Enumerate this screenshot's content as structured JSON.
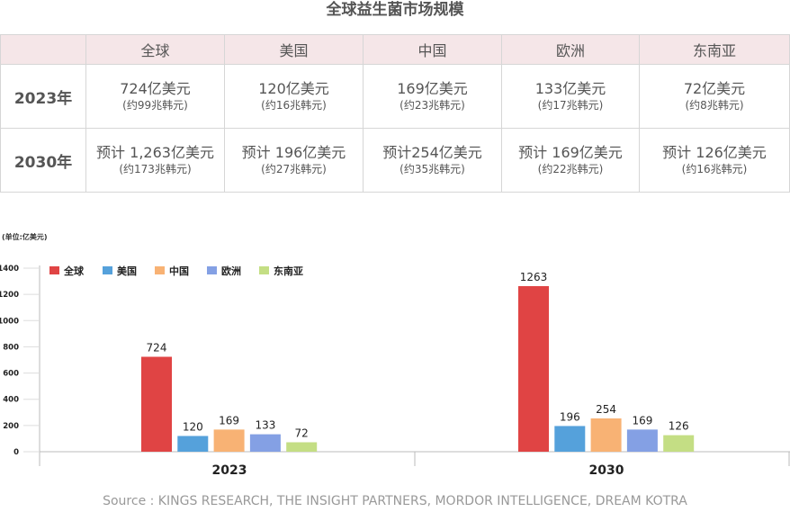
{
  "title": "全球益生菌市场规模",
  "table": {
    "headers": [
      "",
      "全球",
      "美国",
      "中国",
      "欧洲",
      "东南亚"
    ],
    "rows": [
      {
        "year": "2023年",
        "cells": [
          {
            "main": "724亿美元",
            "sub": "(约99兆韩元)"
          },
          {
            "main": "120亿美元",
            "sub": "(约16兆韩元)"
          },
          {
            "main": "169亿美元",
            "sub": "(约23兆韩元)"
          },
          {
            "main": "133亿美元",
            "sub": "(约17兆韩元)"
          },
          {
            "main": "72亿美元",
            "sub": "(约8兆韩元)"
          }
        ]
      },
      {
        "year": "2030年",
        "cells": [
          {
            "main": "预计 1,263亿美元",
            "sub": "(约173兆韩元)"
          },
          {
            "main": "预计 196亿美元",
            "sub": "(约27兆韩元)"
          },
          {
            "main": "预计254亿美元",
            "sub": "(约35兆韩元)"
          },
          {
            "main": "预计 169亿美元",
            "sub": "(约22兆韩元)"
          },
          {
            "main": "预计 126亿美元",
            "sub": "(约16兆韩元)"
          }
        ]
      }
    ]
  },
  "chart_data": {
    "type": "bar",
    "unit_label": "(单位:亿美元)",
    "categories": [
      "2023",
      "2030"
    ],
    "series": [
      {
        "name": "全球",
        "color": "#e04444",
        "values": [
          724,
          1263
        ]
      },
      {
        "name": "美国",
        "color": "#55a1db",
        "values": [
          120,
          196
        ]
      },
      {
        "name": "中国",
        "color": "#f8b274",
        "values": [
          169,
          254
        ]
      },
      {
        "name": "欧洲",
        "color": "#84a0e4",
        "values": [
          133,
          169
        ]
      },
      {
        "name": "东南亚",
        "color": "#c4de84",
        "values": [
          72,
          126
        ]
      }
    ],
    "yticks": [
      0,
      200,
      400,
      600,
      800,
      1000,
      1200,
      1400
    ],
    "ylim": [
      0,
      1400
    ],
    "legend": "top-left",
    "grid": false
  },
  "source": "Source : KINGS RESEARCH, THE INSIGHT PARTNERS, MORDOR INTELLIGENCE, DREAM KOTRA"
}
